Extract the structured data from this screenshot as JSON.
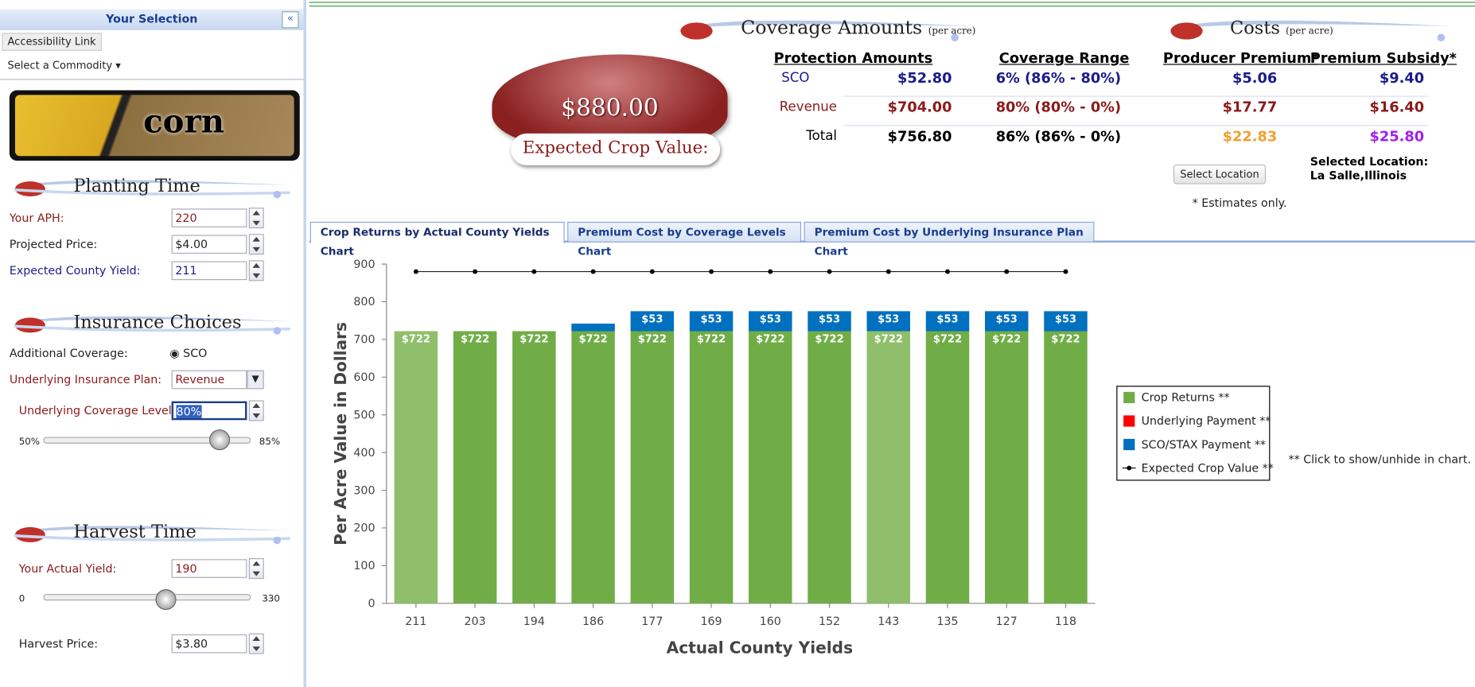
{
  "sidebar": {
    "header": "Your Selection",
    "accessibility": "Accessibility Link",
    "commodity": "Select a Commodity",
    "banner": "corn",
    "planting": {
      "title": "Planting Time",
      "fields": [
        {
          "label": "Your APH:",
          "value": "220"
        },
        {
          "label": "Projected Price:",
          "value": "$4.00"
        },
        {
          "label": "Expected County Yield:",
          "value": "211"
        }
      ]
    },
    "insurance": {
      "title": "Insurance Choices",
      "additional_label": "Additional Coverage:",
      "additional_option": "SCO",
      "plan_label": "Underlying Insurance Plan:",
      "plan_value": "Revenue",
      "level_label": "Underlying Coverage Level:",
      "level_value": "80%",
      "slider_min": "50%",
      "slider_max": "85%"
    },
    "harvest": {
      "title": "Harvest Time",
      "yield_label": "Your Actual Yield:",
      "yield_value": "190",
      "slider_min": "0",
      "slider_max": "330",
      "price_label": "Harvest Price:",
      "price_value": "$3.80"
    }
  },
  "summary": {
    "expected_value": "$880.00",
    "expected_label": "Expected Crop Value:",
    "coverage": {
      "title": "Coverage Amounts",
      "unit": "(per acre)",
      "headers": [
        "Protection Amounts",
        "Coverage Range"
      ],
      "rows": [
        [
          "SCO",
          "$52.80",
          "6% (86% - 80%)"
        ],
        [
          "Revenue",
          "$704.00",
          "80% (80% - 0%)"
        ],
        [
          "Total",
          "$756.80",
          "86% (86% - 0%)"
        ]
      ]
    },
    "costs": {
      "title": "Costs",
      "unit": "(per acre)",
      "headers": [
        "Producer Premium*",
        "Premium Subsidy*"
      ],
      "rows": [
        [
          "$5.06",
          "$9.40"
        ],
        [
          "$17.77",
          "$16.40"
        ],
        [
          "$22.83",
          "$25.80"
        ]
      ]
    },
    "select_location": "Select Location",
    "selected_label": "Selected Location:",
    "selected_value": "La Salle,Illinois",
    "note": "* Estimates only."
  },
  "tabs": [
    "Crop Returns by Actual County Yields Chart",
    "Premium Cost by Coverage Levels Chart",
    "Premium Cost by Underlying Insurance Plan Chart"
  ],
  "chart_data": {
    "type": "bar",
    "stacked": true,
    "x_label": "Actual County Yields",
    "y_label": "Per Acre Value in Dollars",
    "categories": [
      "211",
      "203",
      "194",
      "186",
      "177",
      "169",
      "160",
      "152",
      "143",
      "135",
      "127",
      "118"
    ],
    "series": [
      {
        "name": "Crop Returns **",
        "color": "#70ad47",
        "colors": [
          "#8fbf6a",
          "#70ad47",
          "#70ad47",
          "#70ad47",
          "#70ad47",
          "#70ad47",
          "#70ad47",
          "#70ad47",
          "#8fbf6a",
          "#70ad47",
          "#70ad47",
          "#70ad47"
        ],
        "values": [
          722,
          722,
          722,
          722,
          722,
          722,
          722,
          722,
          722,
          722,
          722,
          722
        ],
        "value_labels": [
          "$722",
          "$722",
          "$722",
          "$722",
          "$722",
          "$722",
          "$722",
          "$722",
          "$722",
          "$722",
          "$722",
          "$722"
        ]
      },
      {
        "name": "Underlying Payment **",
        "color": "#ff0000",
        "values": [
          0,
          0,
          0,
          0,
          0,
          0,
          0,
          0,
          0,
          0,
          0,
          0
        ]
      },
      {
        "name": "SCO/STAX Payment **",
        "color": "#0070c0",
        "values": [
          0,
          0,
          0,
          20,
          53,
          53,
          53,
          53,
          53,
          53,
          53,
          53
        ],
        "value_labels": [
          null,
          null,
          null,
          null,
          "$53",
          "$53",
          "$53",
          "$53",
          "$53",
          "$53",
          "$53",
          "$53"
        ]
      },
      {
        "name": "Expected Crop Value **",
        "type": "line",
        "color": "#000000",
        "values": [
          880,
          880,
          880,
          880,
          880,
          880,
          880,
          880,
          880,
          880,
          880,
          880
        ]
      }
    ],
    "ylim": [
      0,
      900
    ],
    "yticks": [
      0,
      100,
      200,
      300,
      400,
      500,
      600,
      700,
      800,
      900
    ],
    "legend": "right",
    "note": "** Click to show/unhide in chart."
  }
}
